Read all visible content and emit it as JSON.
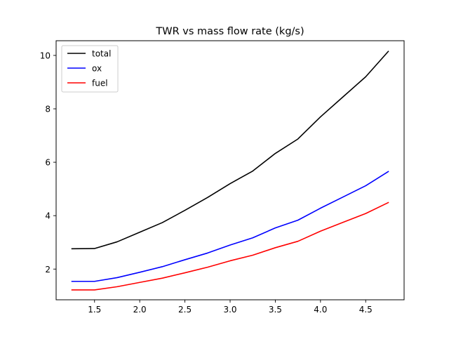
{
  "chart_data": {
    "type": "line",
    "title": "TWR vs mass flow rate (kg/s)",
    "xlabel": "",
    "ylabel": "",
    "xlim": [
      1.075,
      4.925
    ],
    "ylim": [
      0.85,
      10.55
    ],
    "x_ticks": [
      "1.5",
      "2.0",
      "2.5",
      "3.0",
      "3.5",
      "4.0",
      "4.5"
    ],
    "y_ticks": [
      "2",
      "4",
      "6",
      "8",
      "10"
    ],
    "x": [
      1.25,
      1.5,
      1.75,
      2.0,
      2.25,
      2.5,
      2.75,
      3.0,
      3.25,
      3.5,
      3.75,
      4.0,
      4.25,
      4.5,
      4.75
    ],
    "series": [
      {
        "name": "total",
        "color": "#000000",
        "values": [
          2.76,
          2.77,
          3.02,
          3.38,
          3.74,
          4.2,
          4.68,
          5.2,
          5.67,
          6.33,
          6.87,
          7.7,
          8.45,
          9.2,
          10.15
        ]
      },
      {
        "name": "ox",
        "color": "#0000ff",
        "values": [
          1.54,
          1.54,
          1.68,
          1.88,
          2.09,
          2.35,
          2.6,
          2.9,
          3.17,
          3.54,
          3.83,
          4.28,
          4.7,
          5.12,
          5.65
        ]
      },
      {
        "name": "fuel",
        "color": "#ff0000",
        "values": [
          1.22,
          1.22,
          1.34,
          1.5,
          1.66,
          1.86,
          2.07,
          2.31,
          2.52,
          2.8,
          3.04,
          3.42,
          3.75,
          4.08,
          4.49
        ]
      }
    ],
    "legend_position": "upper-left",
    "grid": false
  }
}
